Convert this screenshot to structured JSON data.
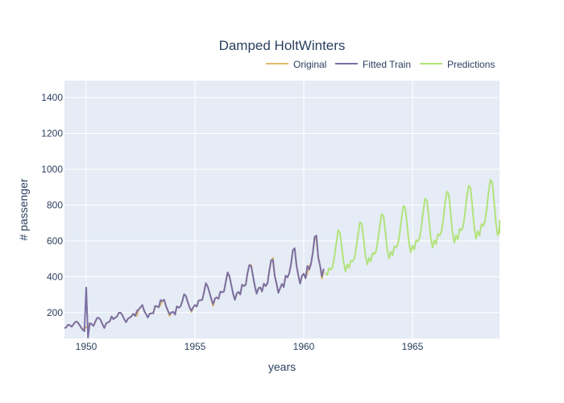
{
  "chart_data": {
    "type": "line",
    "title": "Damped HoltWinters",
    "xlabel": "years",
    "ylabel": "# passenger",
    "xlim": [
      1949.0,
      1969.0
    ],
    "ylim": [
      55,
      1495
    ],
    "x_ticks": [
      1950,
      1955,
      1960,
      1965
    ],
    "y_ticks": [
      200,
      400,
      600,
      800,
      1000,
      1200,
      1400
    ],
    "grid": true,
    "legend_position": "top-right, horizontal",
    "series": [
      {
        "name": "Original",
        "color": "#e1b96b",
        "start": [
          1949,
          1
        ],
        "values": [
          112,
          118,
          132,
          129,
          121,
          135,
          148,
          148,
          136,
          119,
          104,
          118,
          115,
          126,
          141,
          135,
          125,
          149,
          170,
          170,
          158,
          133,
          114,
          140,
          145,
          150,
          178,
          163,
          172,
          178,
          199,
          199,
          184,
          162,
          146,
          166,
          171,
          180,
          193,
          181,
          183,
          218,
          230,
          242,
          209,
          191,
          172,
          194,
          196,
          196,
          236,
          235,
          229,
          243,
          264,
          272,
          237,
          211,
          180,
          201,
          204,
          188,
          235,
          227,
          234,
          264,
          302,
          293,
          259,
          229,
          203,
          229,
          242,
          233,
          267,
          269,
          270,
          315,
          364,
          347,
          312,
          274,
          237,
          278,
          284,
          277,
          317,
          313,
          318,
          374,
          413,
          405,
          355,
          306,
          271,
          306,
          315,
          301,
          356,
          348,
          355,
          422,
          465,
          467,
          404,
          347,
          305,
          336,
          340,
          318,
          362,
          348,
          363,
          435,
          491,
          505,
          404,
          359,
          310,
          337,
          360,
          342,
          406,
          396,
          420,
          472,
          548,
          559,
          463,
          407,
          362,
          405,
          417,
          391,
          419,
          461,
          472,
          535,
          622,
          606,
          508,
          461,
          390,
          432
        ]
      },
      {
        "name": "Fitted Train",
        "color": "#7b6fa3",
        "start": [
          1949,
          1
        ],
        "values": [
          112,
          118,
          132,
          129,
          121,
          135,
          148,
          148,
          136,
          119,
          104,
          96,
          340,
          60,
          141,
          135,
          125,
          149,
          170,
          170,
          158,
          133,
          114,
          140,
          145,
          150,
          178,
          163,
          172,
          178,
          199,
          199,
          184,
          162,
          146,
          166,
          171,
          180,
          193,
          181,
          210,
          218,
          230,
          242,
          209,
          191,
          172,
          194,
          196,
          196,
          236,
          235,
          229,
          270,
          264,
          272,
          237,
          211,
          190,
          201,
          204,
          188,
          235,
          227,
          234,
          264,
          302,
          293,
          259,
          229,
          210,
          229,
          242,
          233,
          267,
          269,
          270,
          315,
          364,
          347,
          312,
          274,
          247,
          278,
          284,
          277,
          317,
          313,
          318,
          374,
          425,
          405,
          355,
          306,
          271,
          306,
          315,
          301,
          356,
          348,
          355,
          422,
          465,
          460,
          404,
          347,
          305,
          336,
          340,
          318,
          362,
          348,
          363,
          435,
          491,
          495,
          404,
          359,
          310,
          337,
          360,
          342,
          406,
          396,
          420,
          472,
          548,
          559,
          463,
          407,
          362,
          405,
          417,
          391,
          460,
          440,
          472,
          535,
          622,
          630,
          508,
          461,
          402,
          445
        ]
      },
      {
        "name": "Predictions",
        "color": "#b2e27b",
        "start": [
          1961,
          1
        ],
        "values": [
          422,
          410,
          448,
          440,
          458,
          520,
          590,
          660,
          645,
          560,
          480,
          430,
          470,
          450,
          490,
          486,
          504,
          570,
          640,
          704,
          696,
          610,
          520,
          468,
          505,
          485,
          532,
          527,
          546,
          612,
          688,
          750,
          740,
          650,
          555,
          502,
          540,
          520,
          570,
          564,
          584,
          650,
          730,
          796,
          784,
          690,
          590,
          535,
          574,
          552,
          604,
          598,
          620,
          690,
          774,
          836,
          824,
          726,
          622,
          563,
          604,
          582,
          638,
          630,
          654,
          726,
          814,
          876,
          862,
          760,
          652,
          590,
          632,
          608,
          668,
          660,
          684,
          760,
          850,
          908,
          896,
          792,
          678,
          612,
          654,
          630,
          694,
          684,
          710,
          788,
          880,
          942,
          926,
          818,
          700,
          630,
          672,
          646,
          716
        ]
      }
    ]
  }
}
